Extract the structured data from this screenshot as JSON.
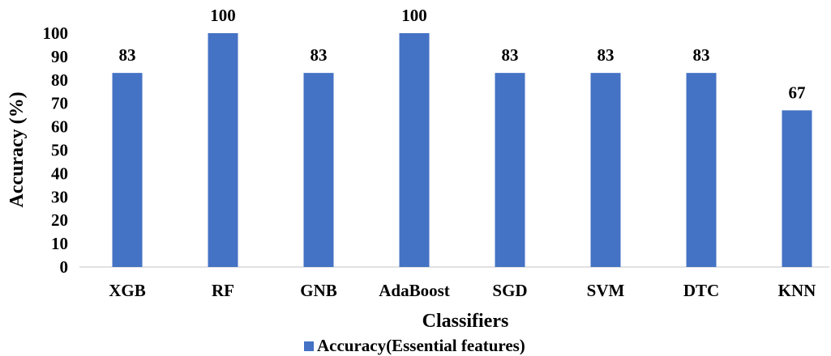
{
  "chart_data": {
    "type": "bar",
    "categories": [
      "XGB",
      "RF",
      "GNB",
      "AdaBoost",
      "SGD",
      "SVM",
      "DTC",
      "KNN"
    ],
    "series": [
      {
        "name": "Accuracy(Essential features)",
        "values": [
          83,
          100,
          83,
          100,
          83,
          83,
          83,
          67
        ],
        "color": "#4472C4"
      }
    ],
    "xlabel": "Classifiers",
    "ylabel": "Accuracy (%)",
    "ylim": [
      0,
      100
    ],
    "yticks": [
      0,
      10,
      20,
      30,
      40,
      50,
      60,
      70,
      80,
      90,
      100
    ],
    "grid": false,
    "legend": "bottom-center",
    "data_labels": true
  }
}
